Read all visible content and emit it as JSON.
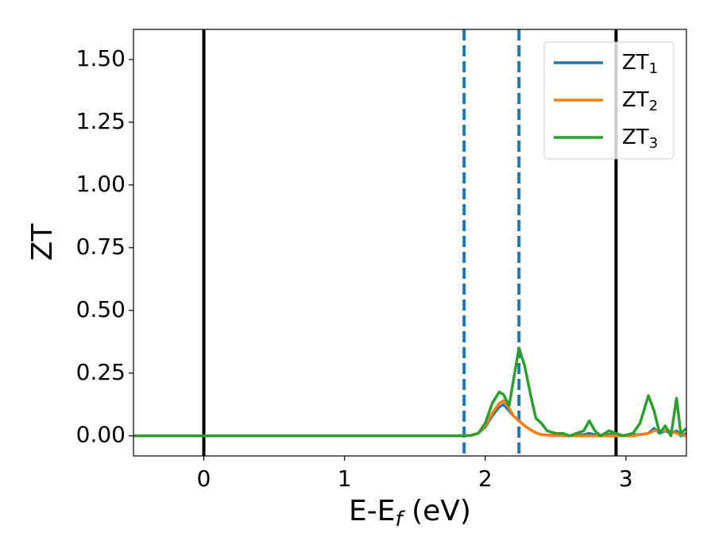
{
  "chart_data": {
    "type": "line",
    "ylabel": "ZT",
    "xlabel": [
      "E-E",
      "f",
      " (eV)"
    ],
    "x": [
      -0.5,
      1.8,
      1.9,
      1.95,
      2.0,
      2.05,
      2.1,
      2.13,
      2.17,
      2.2,
      2.24,
      2.28,
      2.32,
      2.36,
      2.4,
      2.44,
      2.5,
      2.55,
      2.6,
      2.65,
      2.7,
      2.74,
      2.78,
      2.82,
      2.88,
      2.93,
      2.98,
      3.05,
      3.1,
      3.16,
      3.2,
      3.24,
      3.28,
      3.32,
      3.36,
      3.39,
      3.43
    ],
    "series": [
      {
        "name": "ZT",
        "subscript": "1",
        "color": "#1f77b4",
        "values": [
          0,
          0,
          0.002,
          0.01,
          0.035,
          0.08,
          0.115,
          0.125,
          0.1,
          0.08,
          0.06,
          0.04,
          0.025,
          0.012,
          0.005,
          0.003,
          0.002,
          0.001,
          0,
          0.002,
          0.005,
          0.01,
          0.005,
          0,
          0.005,
          0.01,
          0,
          0.005,
          0.005,
          0.01,
          0.03,
          0.01,
          0.02,
          0.01,
          0.02,
          0,
          0.01
        ]
      },
      {
        "name": "ZT",
        "subscript": "2",
        "color": "#ff7f0e",
        "values": [
          0,
          0,
          0.002,
          0.01,
          0.04,
          0.09,
          0.13,
          0.14,
          0.11,
          0.08,
          0.06,
          0.04,
          0.025,
          0.012,
          0.005,
          0.003,
          0.002,
          0.001,
          0,
          0,
          0,
          0,
          0,
          0,
          0,
          0,
          0,
          0,
          0.005,
          0.01,
          0.02,
          0.02,
          0.02,
          0.02,
          0.01,
          0.005,
          0
        ]
      },
      {
        "name": "ZT",
        "subscript": "3",
        "color": "#2ca02c",
        "values": [
          0,
          0,
          0.002,
          0.01,
          0.05,
          0.13,
          0.175,
          0.165,
          0.12,
          0.22,
          0.35,
          0.28,
          0.17,
          0.07,
          0.05,
          0.02,
          0.01,
          0.01,
          0,
          0.01,
          0.02,
          0.06,
          0.02,
          0,
          0.02,
          0.01,
          0,
          0.01,
          0.05,
          0.16,
          0.1,
          0.01,
          0.04,
          0,
          0.15,
          0.01,
          0.03
        ]
      }
    ],
    "vlines": [
      {
        "x": 0,
        "color": "#000000",
        "style": "solid"
      },
      {
        "x": 2.93,
        "color": "#000000",
        "style": "solid"
      },
      {
        "x": 1.85,
        "color": "#1f77b4",
        "style": "dashed"
      },
      {
        "x": 2.24,
        "color": "#1f77b4",
        "style": "dashed"
      }
    ],
    "xlim": [
      -0.5,
      3.43
    ],
    "ylim": [
      -0.08,
      1.62
    ],
    "xticks": [
      0,
      1,
      2,
      3
    ],
    "yticks": [
      {
        "value": 0,
        "label": "0.00"
      },
      {
        "value": 0.25,
        "label": "0.25"
      },
      {
        "value": 0.5,
        "label": "0.50"
      },
      {
        "value": 0.75,
        "label": "0.75"
      },
      {
        "value": 1,
        "label": "1.00"
      },
      {
        "value": 1.25,
        "label": "1.25"
      },
      {
        "value": 1.5,
        "label": "1.50"
      }
    ],
    "grid": false,
    "legend": "upper right"
  }
}
